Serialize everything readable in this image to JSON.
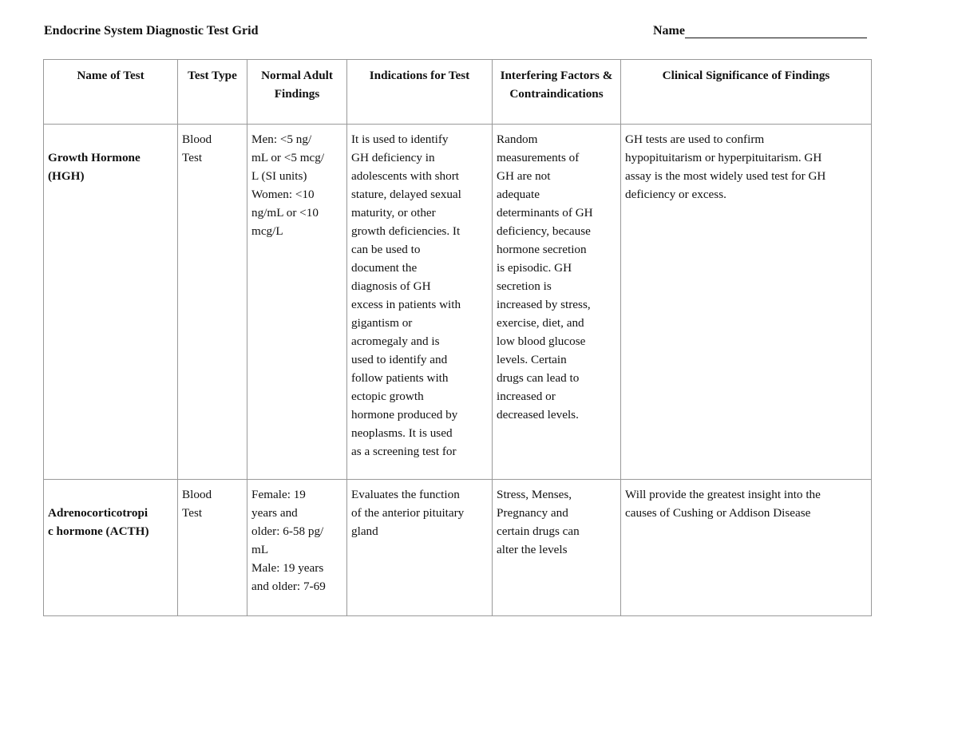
{
  "document": {
    "title": "Endocrine System Diagnostic Test Grid",
    "name_label": "Name"
  },
  "table": {
    "headers": [
      "Name of Test",
      "Test Type",
      "Normal Adult Findings",
      "Indications for Test",
      "Interfering Factors & Contraindications",
      "Clinical Significance of Findings"
    ],
    "rows": [
      [
        "Growth Hormone\n(HGH)",
        "Blood\nTest",
        "   Men: <5 ng/\nmL or <5 mcg/\nL (SI units)\n   Women: <10\nng/mL or <10\nmcg/L",
        "It is used to identify\nGH deficiency in\nadolescents with short\nstature, delayed sexual\nmaturity, or other\ngrowth deficiencies. It\ncan be used to\ndocument the\ndiagnosis of GH\nexcess in patients with\ngigantism or\nacromegaly and is\nused to identify and\nfollow patients with\nectopic growth\nhormone produced by\nneoplasms. It is used\nas a screening test for",
        "   Random\nmeasurements of\nGH are not\nadequate\ndeterminants of GH\ndeficiency, because\nhormone secretion\nis episodic. GH\nsecretion is\nincreased by stress,\nexercise, diet, and\nlow blood glucose\nlevels. Certain\ndrugs can lead to\nincreased or\ndecreased levels.",
        "GH tests are used to confirm\nhypopituitarism or hyperpituitarism. GH\nassay is the most widely used test for GH\ndeficiency or excess."
      ],
      [
        "Adrenocorticotropi\nc hormone (ACTH)",
        "Blood\nTest",
        "Female: 19\nyears and\nolder: 6-58 pg/\nmL\nMale: 19 years\nand older: 7-69",
        "Evaluates the function\nof the anterior pituitary\ngland",
        "Stress, Menses,\nPregnancy and\ncertain drugs can\nalter the levels",
        "Will provide the greatest insight into the\ncauses of Cushing or Addison Disease"
      ]
    ]
  }
}
